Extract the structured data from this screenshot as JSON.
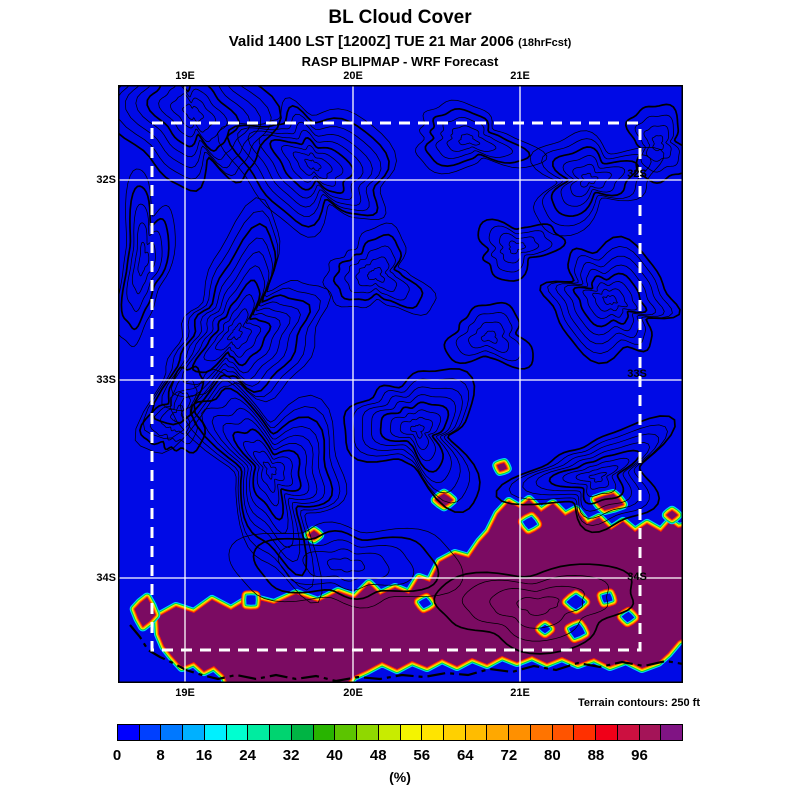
{
  "header": {
    "title": "BL Cloud Cover",
    "valid_line": "Valid 1400 LST [1200Z] TUE 21 Mar 2006",
    "fcst_note": "(18hrFcst)",
    "model_line": "RASP BLIPMAP - WRF Forecast"
  },
  "map": {
    "lon_labels": [
      "19E",
      "20E",
      "21E"
    ],
    "lat_labels": [
      "32S",
      "33S",
      "34S"
    ],
    "footnote": "Terrain contours: 250 ft",
    "base_color": "#000ae6",
    "cloud_color": "#7b0b62",
    "grid_color": "#ffffff",
    "contour_color": "#000000"
  },
  "colorbar": {
    "unit": "(%)",
    "tick_labels": [
      "0",
      "8",
      "16",
      "24",
      "32",
      "40",
      "48",
      "56",
      "64",
      "72",
      "80",
      "88",
      "96"
    ],
    "colors": [
      "#0000ff",
      "#0040ff",
      "#0078ff",
      "#00b0ff",
      "#00f0ff",
      "#00ffd0",
      "#00eca0",
      "#00d470",
      "#00b444",
      "#28b400",
      "#5cc400",
      "#90d800",
      "#c8ec00",
      "#f4f400",
      "#ffe400",
      "#ffd000",
      "#ffbc00",
      "#ffa800",
      "#ff9000",
      "#ff7400",
      "#ff5400",
      "#ff3000",
      "#f00018",
      "#cc1040",
      "#a41458",
      "#801484"
    ]
  },
  "chart_data": {
    "type": "heatmap",
    "title": "BL Cloud Cover",
    "x_ticks": [
      "19E",
      "20E",
      "21E"
    ],
    "y_ticks": [
      "32S",
      "33S",
      "34S"
    ],
    "value_range": [
      0,
      104
    ],
    "value_step": 4,
    "units": "%",
    "legend_position": "bottom",
    "summary": "Boundary-layer cloud cover near 0% (blue) over most of the mapped domain; a band near 100% (dark magenta) covers the southern coastal strip, bounded by thin rainbow transition fringes; black terrain contours at 250 ft intervals; white lat/lon grid and white dashed model sub-domain box."
  }
}
